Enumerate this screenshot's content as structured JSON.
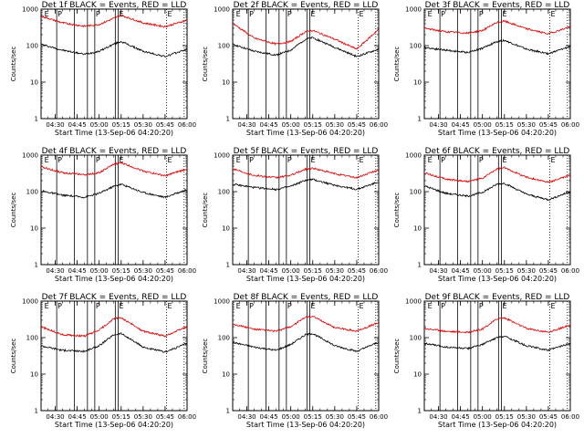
{
  "figure": {
    "title": "",
    "colors": {
      "events": "#000000",
      "lld": "#e00000",
      "axes": "#000000",
      "background": "#ffffff"
    }
  },
  "common": {
    "ylabel": "Counts/sec",
    "xlabel": "Start Time (13-Sep-06 04:20:20)",
    "xticks": [
      "04:30",
      "04:45",
      "05:00",
      "05:15",
      "05:30",
      "05:45",
      "06:00"
    ],
    "yticks": [
      "1",
      "10",
      "100",
      "1000"
    ],
    "flag_labels": {
      "e": "E",
      "p": "P"
    }
  },
  "chart_data": [
    {
      "type": "line",
      "title": "Det 1f  BLACK = Events, RED = LLD",
      "x_axis": "time (UTC, 13-Sep-06)",
      "xlim": [
        "04:20:20",
        "06:00"
      ],
      "ylim": [
        1,
        1000
      ],
      "yscale": "log",
      "grid": false,
      "legend": "in title",
      "x": [
        "04:20",
        "04:35",
        "04:50",
        "05:00",
        "05:10",
        "05:15",
        "05:30",
        "05:45",
        "06:00"
      ],
      "series": [
        {
          "name": "Events",
          "color": "#000000",
          "values": [
            110,
            75,
            58,
            70,
            110,
            130,
            70,
            50,
            80
          ]
        },
        {
          "name": "LLD",
          "color": "#e00000",
          "values": [
            650,
            420,
            340,
            380,
            560,
            680,
            420,
            330,
            500
          ]
        }
      ],
      "lines": {
        "solid": [
          "04:31",
          "04:43",
          "04:52",
          "04:57",
          "05:11",
          "05:13"
        ],
        "dotted": [
          "05:46",
          "05:58"
        ]
      },
      "flags": [
        {
          "label": "E",
          "time": "04:22"
        },
        {
          "label": "P",
          "time": "04:31"
        },
        {
          "label": "P",
          "time": "04:57"
        },
        {
          "label": "E",
          "time": "05:13"
        },
        {
          "label": "E",
          "time": "05:46"
        }
      ]
    },
    {
      "type": "line",
      "title": "Det 2f  BLACK = Events, RED = LLD",
      "x_axis": "time (UTC, 13-Sep-06)",
      "xlim": [
        "04:20:20",
        "06:00"
      ],
      "ylim": [
        1,
        1000
      ],
      "yscale": "log",
      "grid": false,
      "legend": "in title",
      "x": [
        "04:20",
        "04:35",
        "04:50",
        "05:00",
        "05:10",
        "05:15",
        "05:30",
        "05:45",
        "06:00"
      ],
      "series": [
        {
          "name": "Events",
          "color": "#000000",
          "values": [
            110,
            70,
            55,
            75,
            150,
            165,
            90,
            50,
            80
          ]
        },
        {
          "name": "LLD",
          "color": "#e00000",
          "values": [
            420,
            160,
            110,
            130,
            240,
            260,
            150,
            80,
            280
          ]
        }
      ],
      "lines": {
        "solid": [
          "04:31",
          "04:43",
          "04:52",
          "04:57",
          "05:11",
          "05:13"
        ],
        "dotted": [
          "05:46",
          "05:58"
        ]
      },
      "flags": [
        {
          "label": "E",
          "time": "04:22"
        },
        {
          "label": "P",
          "time": "04:31"
        },
        {
          "label": "P",
          "time": "04:57"
        },
        {
          "label": "E",
          "time": "05:13"
        },
        {
          "label": "E",
          "time": "05:46"
        }
      ]
    },
    {
      "type": "line",
      "title": "Det 3f  BLACK = Events, RED = LLD",
      "x_axis": "time (UTC, 13-Sep-06)",
      "xlim": [
        "04:20:20",
        "06:00"
      ],
      "ylim": [
        1,
        1000
      ],
      "yscale": "log",
      "grid": false,
      "legend": "in title",
      "x": [
        "04:20",
        "04:35",
        "04:50",
        "05:00",
        "05:10",
        "05:15",
        "05:30",
        "05:45",
        "06:00"
      ],
      "series": [
        {
          "name": "Events",
          "color": "#000000",
          "values": [
            90,
            75,
            65,
            85,
            130,
            140,
            80,
            60,
            95
          ]
        },
        {
          "name": "LLD",
          "color": "#e00000",
          "values": [
            300,
            240,
            220,
            260,
            430,
            470,
            290,
            210,
            330
          ]
        }
      ],
      "lines": {
        "solid": [
          "04:31",
          "04:43",
          "04:52",
          "04:57",
          "05:11",
          "05:13"
        ],
        "dotted": [
          "05:46",
          "05:58"
        ]
      },
      "flags": [
        {
          "label": "E",
          "time": "04:22"
        },
        {
          "label": "P",
          "time": "04:31"
        },
        {
          "label": "P",
          "time": "04:57"
        },
        {
          "label": "E",
          "time": "05:13"
        },
        {
          "label": "E",
          "time": "05:46"
        }
      ]
    },
    {
      "type": "line",
      "title": "Det 4f  BLACK = Events, RED = LLD",
      "x_axis": "time (UTC, 13-Sep-06)",
      "xlim": [
        "04:20:20",
        "06:00"
      ],
      "ylim": [
        1,
        1000
      ],
      "yscale": "log",
      "grid": false,
      "legend": "in title",
      "x": [
        "04:20",
        "04:35",
        "04:50",
        "05:00",
        "05:10",
        "05:15",
        "05:30",
        "05:45",
        "06:00"
      ],
      "series": [
        {
          "name": "Events",
          "color": "#000000",
          "values": [
            105,
            80,
            70,
            90,
            140,
            160,
            95,
            70,
            115
          ]
        },
        {
          "name": "LLD",
          "color": "#e00000",
          "values": [
            480,
            330,
            290,
            330,
            560,
            620,
            370,
            270,
            420
          ]
        }
      ],
      "lines": {
        "solid": [
          "04:31",
          "04:43",
          "04:52",
          "04:57",
          "05:11",
          "05:13"
        ],
        "dotted": [
          "05:46",
          "05:58"
        ]
      },
      "flags": [
        {
          "label": "E",
          "time": "04:22"
        },
        {
          "label": "P",
          "time": "04:31"
        },
        {
          "label": "P",
          "time": "04:57"
        },
        {
          "label": "E",
          "time": "05:13"
        },
        {
          "label": "E",
          "time": "05:46"
        }
      ]
    },
    {
      "type": "line",
      "title": "Det 5f  BLACK = Events, RED = LLD",
      "x_axis": "time (UTC, 13-Sep-06)",
      "xlim": [
        "04:20:20",
        "06:00"
      ],
      "ylim": [
        1,
        1000
      ],
      "yscale": "log",
      "grid": false,
      "legend": "in title",
      "x": [
        "04:20",
        "04:35",
        "04:50",
        "05:00",
        "05:10",
        "05:15",
        "05:30",
        "05:45",
        "06:00"
      ],
      "series": [
        {
          "name": "Events",
          "color": "#000000",
          "values": [
            160,
            130,
            115,
            140,
            205,
            215,
            150,
            115,
            185
          ]
        },
        {
          "name": "LLD",
          "color": "#e00000",
          "values": [
            430,
            280,
            240,
            280,
            410,
            440,
            310,
            240,
            400
          ]
        }
      ],
      "lines": {
        "solid": [
          "04:31",
          "04:43",
          "04:52",
          "04:57",
          "05:11",
          "05:13"
        ],
        "dotted": [
          "05:46",
          "05:58"
        ]
      },
      "flags": [
        {
          "label": "E",
          "time": "04:22"
        },
        {
          "label": "P",
          "time": "04:31"
        },
        {
          "label": "P",
          "time": "04:57"
        },
        {
          "label": "E",
          "time": "05:13"
        },
        {
          "label": "E",
          "time": "05:46"
        }
      ]
    },
    {
      "type": "line",
      "title": "Det 6f  BLACK = Events, RED = LLD",
      "x_axis": "time (UTC, 13-Sep-06)",
      "xlim": [
        "04:20:20",
        "06:00"
      ],
      "ylim": [
        1,
        1000
      ],
      "yscale": "log",
      "grid": false,
      "legend": "in title",
      "x": [
        "04:20",
        "04:35",
        "04:50",
        "05:00",
        "05:10",
        "05:15",
        "05:30",
        "05:45",
        "06:00"
      ],
      "series": [
        {
          "name": "Events",
          "color": "#000000",
          "values": [
            145,
            90,
            75,
            95,
            160,
            170,
            85,
            60,
            100
          ]
        },
        {
          "name": "LLD",
          "color": "#e00000",
          "values": [
            330,
            220,
            190,
            230,
            420,
            450,
            250,
            180,
            280
          ]
        }
      ],
      "lines": {
        "solid": [
          "04:31",
          "04:43",
          "04:52",
          "04:57",
          "05:11",
          "05:13"
        ],
        "dotted": [
          "05:46",
          "05:58"
        ]
      },
      "flags": [
        {
          "label": "E",
          "time": "04:22"
        },
        {
          "label": "P",
          "time": "04:31"
        },
        {
          "label": "P",
          "time": "04:57"
        },
        {
          "label": "E",
          "time": "05:13"
        },
        {
          "label": "E",
          "time": "05:46"
        }
      ]
    },
    {
      "type": "line",
      "title": "Det 7f  BLACK = Events, RED = LLD",
      "x_axis": "time (UTC, 13-Sep-06)",
      "xlim": [
        "04:20:20",
        "06:00"
      ],
      "ylim": [
        1,
        1000
      ],
      "yscale": "log",
      "grid": false,
      "legend": "in title",
      "x": [
        "04:20",
        "04:35",
        "04:50",
        "05:00",
        "05:10",
        "05:15",
        "05:30",
        "05:45",
        "06:00"
      ],
      "series": [
        {
          "name": "Events",
          "color": "#000000",
          "values": [
            60,
            45,
            42,
            60,
            120,
            130,
            55,
            40,
            70
          ]
        },
        {
          "name": "LLD",
          "color": "#e00000",
          "values": [
            200,
            120,
            110,
            160,
            330,
            350,
            150,
            110,
            200
          ]
        }
      ],
      "lines": {
        "solid": [
          "04:31",
          "04:43",
          "04:52",
          "04:57",
          "05:11",
          "05:13"
        ],
        "dotted": [
          "05:46",
          "05:58"
        ]
      },
      "flags": [
        {
          "label": "E",
          "time": "04:22"
        },
        {
          "label": "P",
          "time": "04:31"
        },
        {
          "label": "P",
          "time": "04:57"
        },
        {
          "label": "E",
          "time": "05:13"
        },
        {
          "label": "E",
          "time": "05:46"
        }
      ]
    },
    {
      "type": "line",
      "title": "Det 8f  BLACK = Events, RED = LLD",
      "x_axis": "time (UTC, 13-Sep-06)",
      "xlim": [
        "04:20:20",
        "06:00"
      ],
      "ylim": [
        1,
        1000
      ],
      "yscale": "log",
      "grid": false,
      "legend": "in title",
      "x": [
        "04:20",
        "04:35",
        "04:50",
        "05:00",
        "05:10",
        "05:15",
        "05:30",
        "05:45",
        "06:00"
      ],
      "series": [
        {
          "name": "Events",
          "color": "#000000",
          "values": [
            75,
            55,
            45,
            65,
            120,
            130,
            60,
            42,
            75
          ]
        },
        {
          "name": "LLD",
          "color": "#e00000",
          "values": [
            240,
            170,
            150,
            200,
            360,
            380,
            190,
            150,
            260
          ]
        }
      ],
      "lines": {
        "solid": [
          "04:31",
          "04:43",
          "04:52",
          "04:57",
          "05:11",
          "05:13"
        ],
        "dotted": [
          "05:46",
          "05:58"
        ]
      },
      "flags": [
        {
          "label": "E",
          "time": "04:22"
        },
        {
          "label": "P",
          "time": "04:31"
        },
        {
          "label": "P",
          "time": "04:57"
        },
        {
          "label": "E",
          "time": "05:13"
        },
        {
          "label": "E",
          "time": "05:46"
        }
      ]
    },
    {
      "type": "line",
      "title": "Det 9f  BLACK = Events, RED = LLD",
      "x_axis": "time (UTC, 13-Sep-06)",
      "xlim": [
        "04:20:20",
        "06:00"
      ],
      "ylim": [
        1,
        1000
      ],
      "yscale": "log",
      "grid": false,
      "legend": "in title",
      "x": [
        "04:20",
        "04:35",
        "04:50",
        "05:00",
        "05:10",
        "05:15",
        "05:30",
        "05:45",
        "06:00"
      ],
      "series": [
        {
          "name": "Events",
          "color": "#000000",
          "values": [
            70,
            55,
            50,
            65,
            100,
            110,
            60,
            45,
            70
          ]
        },
        {
          "name": "LLD",
          "color": "#e00000",
          "values": [
            180,
            150,
            140,
            170,
            330,
            350,
            180,
            140,
            220
          ]
        }
      ],
      "lines": {
        "solid": [
          "04:31",
          "04:43",
          "04:52",
          "04:57",
          "05:11",
          "05:13"
        ],
        "dotted": [
          "05:46",
          "05:58"
        ]
      },
      "flags": [
        {
          "label": "E",
          "time": "04:22"
        },
        {
          "label": "P",
          "time": "04:31"
        },
        {
          "label": "P",
          "time": "04:57"
        },
        {
          "label": "E",
          "time": "05:13"
        },
        {
          "label": "E",
          "time": "05:46"
        }
      ]
    }
  ]
}
